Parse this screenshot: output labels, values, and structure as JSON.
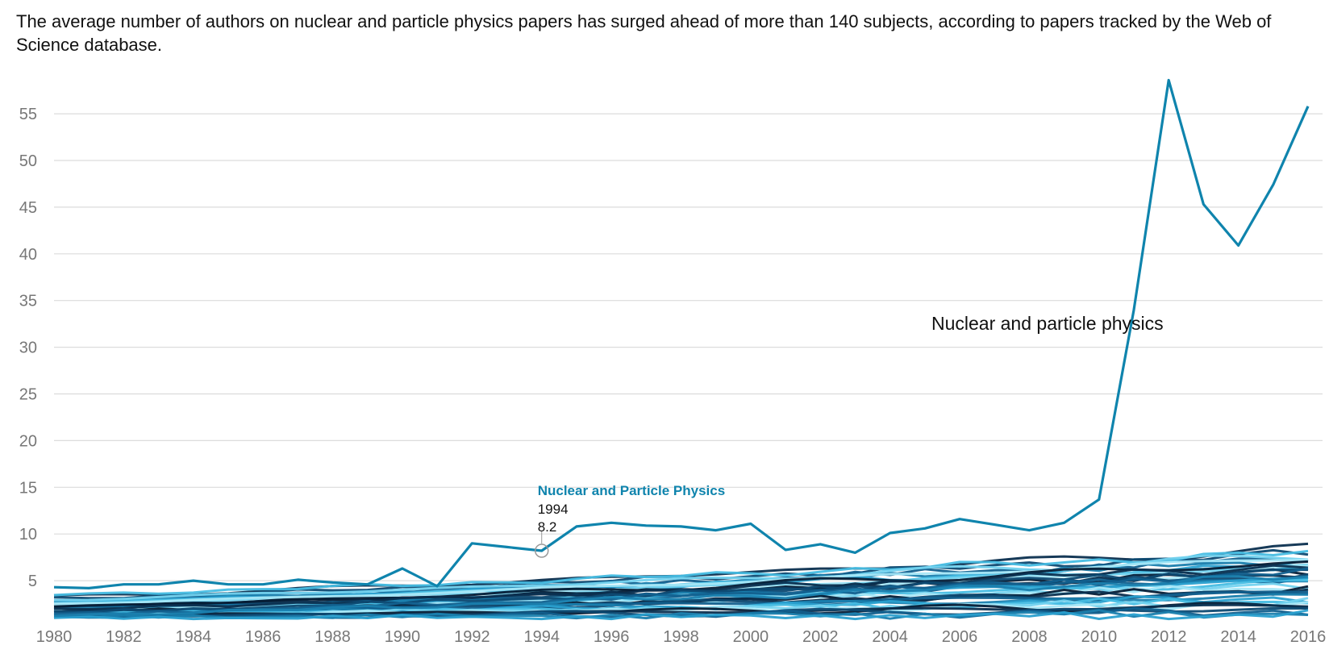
{
  "subtitle": "The average number of authors on nuclear and particle physics papers has surged ahead of more than 140 subjects, according to papers tracked by the Web of Science database.",
  "colors": {
    "highlight": "#0f84ad",
    "grid": "#dcdcdc",
    "tick_text": "#777777",
    "palette": [
      "#0b2f4f",
      "#0e4a72",
      "#12608e",
      "#1a7fae",
      "#2aa0cf",
      "#47bde3",
      "#74d3ef",
      "#a6e7f7",
      "#061e36"
    ]
  },
  "chart_data": {
    "type": "line",
    "title": "",
    "xlabel": "",
    "ylabel": "",
    "xlim": [
      1980,
      2016
    ],
    "ylim": [
      0,
      60
    ],
    "yticks": [
      5,
      10,
      15,
      20,
      25,
      30,
      35,
      40,
      45,
      50,
      55
    ],
    "xticks": [
      1980,
      1982,
      1984,
      1986,
      1988,
      1990,
      1992,
      1994,
      1996,
      1998,
      2000,
      2002,
      2004,
      2006,
      2008,
      2010,
      2012,
      2014,
      2016
    ],
    "grid": true,
    "x": [
      1980,
      1981,
      1982,
      1983,
      1984,
      1985,
      1986,
      1987,
      1988,
      1989,
      1990,
      1991,
      1992,
      1993,
      1994,
      1995,
      1996,
      1997,
      1998,
      1999,
      2000,
      2001,
      2002,
      2003,
      2004,
      2005,
      2006,
      2007,
      2008,
      2009,
      2010,
      2011,
      2012,
      2013,
      2014,
      2015,
      2016
    ],
    "highlight_series": {
      "name": "Nuclear and particle physics",
      "values": [
        4.3,
        4.2,
        4.6,
        4.6,
        5.0,
        4.6,
        4.6,
        5.1,
        4.8,
        4.6,
        6.3,
        4.4,
        9.0,
        8.6,
        8.2,
        10.8,
        11.2,
        10.9,
        10.8,
        10.4,
        11.1,
        8.3,
        8.9,
        8.0,
        10.1,
        10.6,
        11.6,
        11.0,
        10.4,
        11.2,
        13.7,
        34.0,
        58.6,
        45.3,
        40.9,
        47.4,
        55.8
      ],
      "annotation": "Nuclear and particle physics"
    },
    "background_series_endpoints": [
      [
        3.3,
        8.4
      ],
      [
        3.1,
        7.9
      ],
      [
        2.9,
        7.4
      ],
      [
        2.8,
        7.1
      ],
      [
        2.7,
        6.8
      ],
      [
        2.6,
        6.5
      ],
      [
        2.5,
        6.3
      ],
      [
        2.4,
        6.1
      ],
      [
        2.3,
        5.9
      ],
      [
        2.2,
        5.7
      ],
      [
        2.1,
        5.5
      ],
      [
        2.0,
        5.3
      ],
      [
        2.0,
        5.1
      ],
      [
        1.9,
        4.9
      ],
      [
        1.9,
        4.7
      ],
      [
        1.8,
        4.5
      ],
      [
        1.8,
        4.3
      ],
      [
        1.7,
        4.1
      ],
      [
        1.7,
        3.9
      ],
      [
        1.6,
        3.7
      ],
      [
        1.6,
        3.5
      ],
      [
        1.5,
        3.3
      ],
      [
        1.5,
        3.1
      ],
      [
        1.4,
        2.9
      ],
      [
        1.4,
        2.7
      ],
      [
        1.3,
        2.5
      ],
      [
        1.3,
        2.3
      ],
      [
        1.2,
        2.1
      ],
      [
        1.2,
        1.9
      ],
      [
        1.1,
        1.7
      ],
      [
        1.1,
        1.5
      ],
      [
        1.0,
        1.3
      ],
      [
        3.5,
        8.0
      ],
      [
        3.0,
        7.6
      ],
      [
        2.5,
        7.2
      ],
      [
        2.2,
        6.9
      ],
      [
        1.9,
        6.6
      ],
      [
        1.6,
        6.2
      ],
      [
        1.4,
        5.8
      ],
      [
        1.3,
        5.4
      ]
    ],
    "tooltip": {
      "series": "Nuclear and Particle Physics",
      "x": "1994",
      "y": "8.2"
    }
  }
}
